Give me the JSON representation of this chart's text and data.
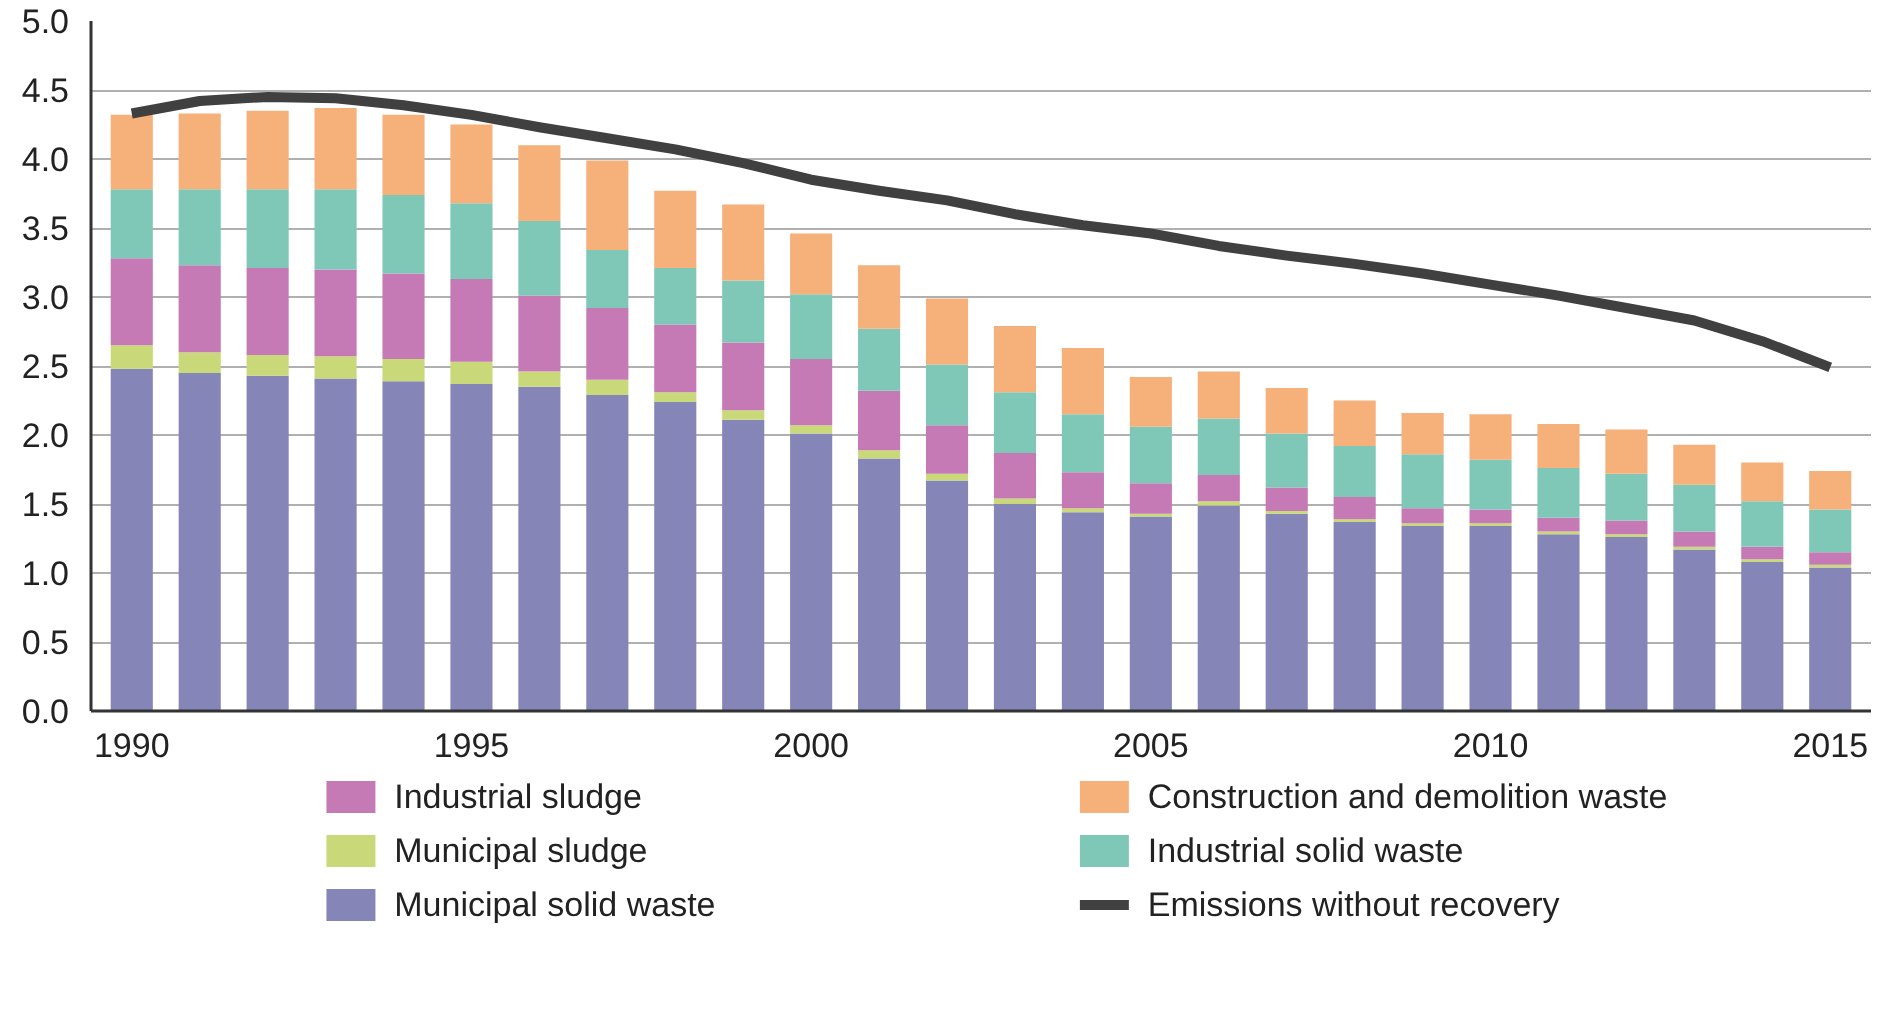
{
  "chart_data": {
    "type": "bar",
    "stacked": true,
    "x": [
      1990,
      1991,
      1992,
      1993,
      1994,
      1995,
      1996,
      1997,
      1998,
      1999,
      2000,
      2001,
      2002,
      2003,
      2004,
      2005,
      2006,
      2007,
      2008,
      2009,
      2010,
      2011,
      2012,
      2013,
      2014,
      2015
    ],
    "series": [
      {
        "name": "Municipal solid waste",
        "color": "#8585b8",
        "values": [
          2.48,
          2.45,
          2.43,
          2.41,
          2.39,
          2.37,
          2.35,
          2.29,
          2.24,
          2.11,
          2.01,
          1.83,
          1.67,
          1.5,
          1.44,
          1.41,
          1.49,
          1.43,
          1.37,
          1.34,
          1.34,
          1.28,
          1.26,
          1.17,
          1.08,
          1.04
        ]
      },
      {
        "name": "Municipal sludge",
        "color": "#c9d97a",
        "values": [
          0.17,
          0.15,
          0.15,
          0.16,
          0.16,
          0.16,
          0.11,
          0.11,
          0.07,
          0.07,
          0.06,
          0.06,
          0.05,
          0.04,
          0.03,
          0.02,
          0.03,
          0.02,
          0.02,
          0.02,
          0.02,
          0.02,
          0.02,
          0.02,
          0.02,
          0.02
        ]
      },
      {
        "name": "Industrial sludge",
        "color": "#c57ab5",
        "values": [
          0.63,
          0.63,
          0.63,
          0.63,
          0.62,
          0.6,
          0.55,
          0.52,
          0.49,
          0.49,
          0.48,
          0.43,
          0.35,
          0.33,
          0.26,
          0.22,
          0.19,
          0.17,
          0.16,
          0.11,
          0.1,
          0.1,
          0.1,
          0.11,
          0.09,
          0.09
        ]
      },
      {
        "name": "Industrial solid waste",
        "color": "#7fc8b8",
        "values": [
          0.5,
          0.55,
          0.57,
          0.58,
          0.57,
          0.55,
          0.54,
          0.42,
          0.41,
          0.45,
          0.47,
          0.45,
          0.44,
          0.44,
          0.42,
          0.41,
          0.41,
          0.39,
          0.37,
          0.39,
          0.36,
          0.36,
          0.34,
          0.34,
          0.33,
          0.31
        ]
      },
      {
        "name": "Construction and demolition waste",
        "color": "#f6b07a",
        "values": [
          0.54,
          0.55,
          0.57,
          0.59,
          0.58,
          0.57,
          0.55,
          0.65,
          0.56,
          0.55,
          0.44,
          0.46,
          0.48,
          0.48,
          0.48,
          0.36,
          0.34,
          0.33,
          0.33,
          0.3,
          0.33,
          0.32,
          0.32,
          0.29,
          0.28,
          0.28
        ]
      },
      {
        "name": "Emissions without recovery",
        "type": "line",
        "color": "#404040",
        "values": [
          4.33,
          4.42,
          4.45,
          4.44,
          4.39,
          4.32,
          4.23,
          4.15,
          4.07,
          3.97,
          3.85,
          3.77,
          3.7,
          3.6,
          3.52,
          3.46,
          3.37,
          3.3,
          3.24,
          3.17,
          3.09,
          3.01,
          2.92,
          2.83,
          2.68,
          2.49
        ]
      }
    ],
    "xlim": [
      1989.4,
      2015.6
    ],
    "xticks": [
      1990,
      1995,
      2000,
      2005,
      2010,
      2015
    ],
    "ylim": [
      0,
      5
    ],
    "yticks": [
      {
        "value": 0,
        "label": "0.0"
      },
      {
        "value": 0.5,
        "label": "0.5"
      },
      {
        "value": 1,
        "label": "1.0"
      },
      {
        "value": 1.5,
        "label": "1.5"
      },
      {
        "value": 2,
        "label": "2.0"
      },
      {
        "value": 2.5,
        "label": "2.5"
      },
      {
        "value": 3,
        "label": "3.0"
      },
      {
        "value": 3.5,
        "label": "3.5"
      },
      {
        "value": 4,
        "label": "4.0"
      },
      {
        "value": 4.5,
        "label": "4.5"
      },
      {
        "value": 5,
        "label": "5.0"
      }
    ],
    "grid": "y",
    "legend": "bottom",
    "marker": "none",
    "line_style": "solid"
  }
}
